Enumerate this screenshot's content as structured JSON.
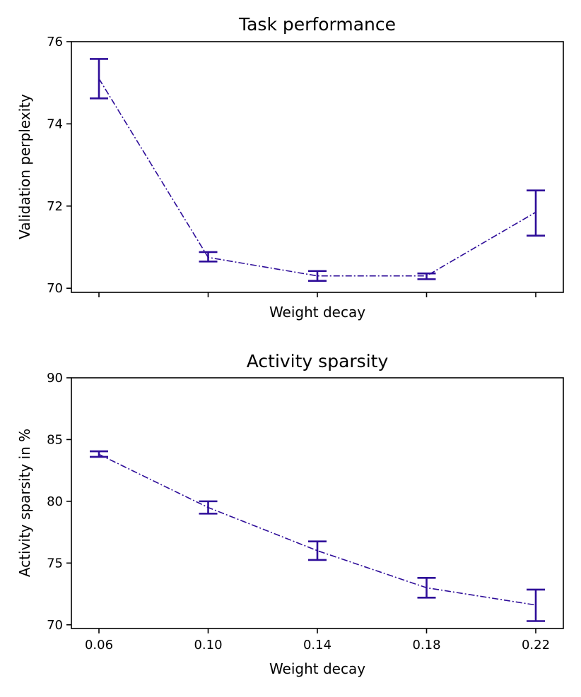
{
  "colors": {
    "series": "#2e0d99"
  },
  "chart_data": [
    {
      "type": "line",
      "title": "Task performance",
      "xlabel": "Weight decay",
      "ylabel": "Validation perplexity",
      "x": [
        0.06,
        0.1,
        0.14,
        0.18,
        0.22
      ],
      "xtick_labels": [
        "",
        "",
        "",
        "",
        ""
      ],
      "ylim": [
        69.9,
        76.0
      ],
      "yticks": [
        70,
        72,
        74,
        76
      ],
      "ytick_labels": [
        "70",
        "72",
        "74",
        "76"
      ],
      "series": [
        {
          "name": "Validation perplexity",
          "values": [
            75.1,
            70.75,
            70.3,
            70.3,
            71.85
          ],
          "err_low": [
            74.62,
            70.65,
            70.18,
            70.22,
            71.28
          ],
          "err_high": [
            75.58,
            70.88,
            70.42,
            70.36,
            72.38
          ]
        }
      ]
    },
    {
      "type": "line",
      "title": "Activity sparsity",
      "xlabel": "Weight decay",
      "ylabel": "Activity sparsity in %",
      "x": [
        0.06,
        0.1,
        0.14,
        0.18,
        0.22
      ],
      "xtick_labels": [
        "0.06",
        "0.10",
        "0.14",
        "0.18",
        "0.22"
      ],
      "ylim": [
        69.7,
        90.0
      ],
      "yticks": [
        70,
        75,
        80,
        85,
        90
      ],
      "ytick_labels": [
        "70",
        "75",
        "80",
        "85",
        "90"
      ],
      "series": [
        {
          "name": "Activity sparsity",
          "values": [
            83.8,
            79.5,
            76.0,
            73.0,
            71.6
          ],
          "err_low": [
            83.6,
            79.0,
            75.25,
            72.2,
            70.3
          ],
          "err_high": [
            84.05,
            80.0,
            76.75,
            73.8,
            72.85
          ]
        }
      ]
    }
  ]
}
